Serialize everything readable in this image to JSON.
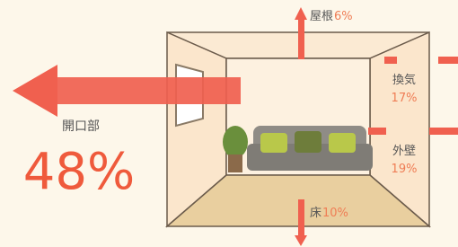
{
  "callouts": [
    {
      "label": "開口部",
      "value": "48%"
    },
    {
      "label": "屋根",
      "value": "6%"
    },
    {
      "label": "換気",
      "value": "17%"
    },
    {
      "label": "外壁",
      "value": "19%"
    },
    {
      "label": "床",
      "value": "10%"
    }
  ]
}
